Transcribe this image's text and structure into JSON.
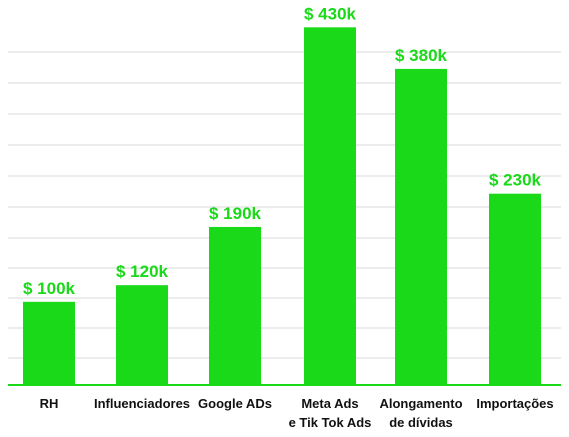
{
  "chart_data": {
    "type": "bar",
    "title": "",
    "xlabel": "",
    "ylabel": "",
    "categories": [
      [
        "RH"
      ],
      [
        "Influenciadores"
      ],
      [
        "Google ADs"
      ],
      [
        "Meta Ads",
        "e Tik Tok Ads"
      ],
      [
        "Alongamento",
        "de dívidas"
      ],
      [
        "Importações"
      ]
    ],
    "values": [
      100,
      120,
      190,
      430,
      380,
      230
    ],
    "value_labels": [
      "$ 100k",
      "$ 120k",
      "$ 190k",
      "$ 430k",
      "$ 380k",
      "$ 230k"
    ],
    "ylim": [
      0,
      440
    ],
    "grid": true,
    "legend": "none",
    "colors": {
      "bar": "#19d919",
      "value_text": "#19d919",
      "category_text": "#111111",
      "grid": "#d9d9d9"
    }
  }
}
